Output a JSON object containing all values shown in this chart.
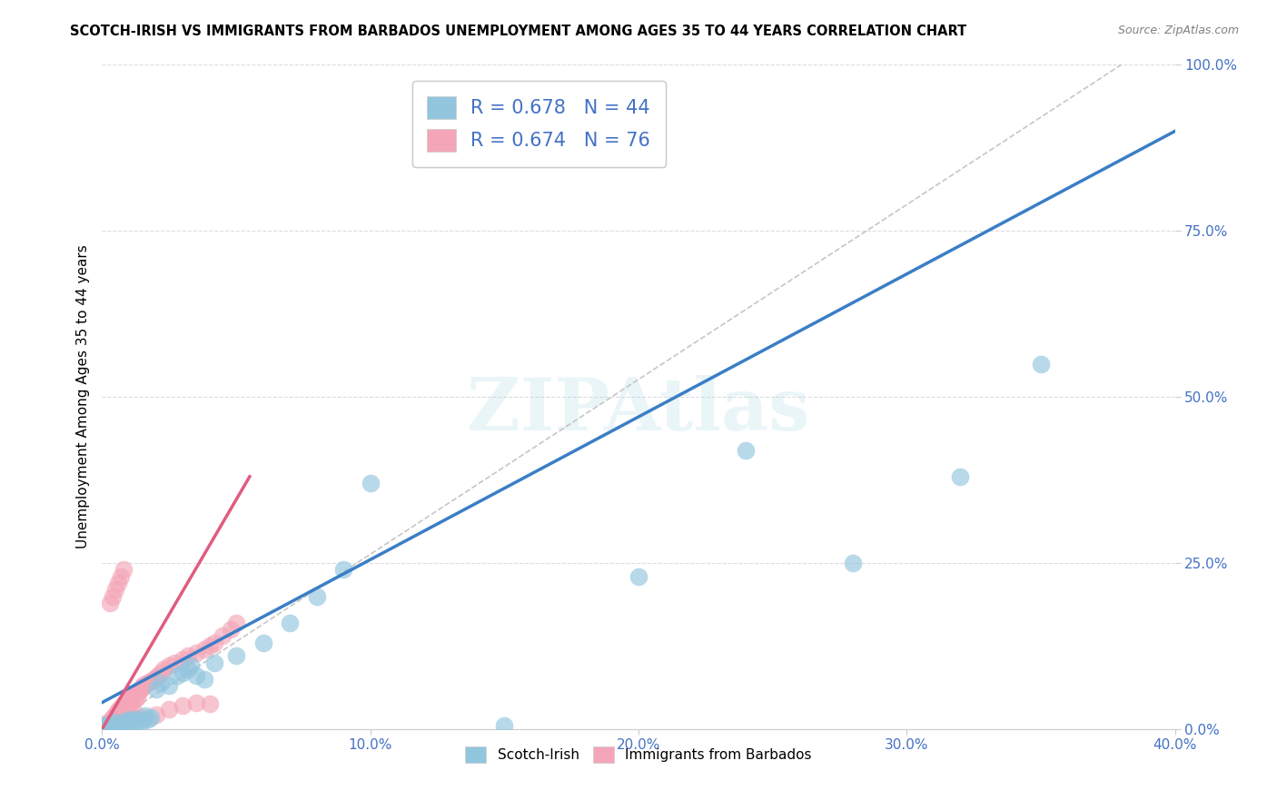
{
  "title": "SCOTCH-IRISH VS IMMIGRANTS FROM BARBADOS UNEMPLOYMENT AMONG AGES 35 TO 44 YEARS CORRELATION CHART",
  "source": "Source: ZipAtlas.com",
  "ylabel": "Unemployment Among Ages 35 to 44 years",
  "xlim": [
    0,
    0.4
  ],
  "ylim": [
    0,
    1.0
  ],
  "xticks": [
    0.0,
    0.1,
    0.2,
    0.3,
    0.4
  ],
  "xtick_labels": [
    "0.0%",
    "10.0%",
    "20.0%",
    "30.0%",
    "40.0%"
  ],
  "yticks": [
    0.0,
    0.25,
    0.5,
    0.75,
    1.0
  ],
  "ytick_labels": [
    "0.0%",
    "25.0%",
    "50.0%",
    "75.0%",
    "100.0%"
  ],
  "legend_scotch_irish": "Scotch-Irish",
  "legend_barbados": "Immigrants from Barbados",
  "R_scotch": 0.678,
  "N_scotch": 44,
  "R_barbados": 0.674,
  "N_barbados": 76,
  "scotch_irish_color": "#92C5DE",
  "barbados_color": "#F4A6B8",
  "scotch_irish_line_color": "#3A7EC6",
  "barbados_line_color": "#E05C80",
  "watermark": "ZIPAtlas",
  "blue_line_x0": 0.0,
  "blue_line_y0": 0.04,
  "blue_line_x1": 0.4,
  "blue_line_y1": 0.9,
  "pink_line_x0": 0.0,
  "pink_line_y0": 0.0,
  "pink_line_x1": 0.055,
  "pink_line_y1": 0.38,
  "dash_line_x0": 0.0,
  "dash_line_y0": 0.0,
  "dash_line_x1": 0.38,
  "dash_line_y1": 1.0,
  "scotch_x": [
    0.001,
    0.002,
    0.002,
    0.003,
    0.003,
    0.004,
    0.005,
    0.005,
    0.006,
    0.007,
    0.008,
    0.009,
    0.01,
    0.01,
    0.011,
    0.012,
    0.013,
    0.014,
    0.015,
    0.016,
    0.017,
    0.018,
    0.02,
    0.022,
    0.025,
    0.028,
    0.03,
    0.032,
    0.033,
    0.035,
    0.038,
    0.042,
    0.05,
    0.06,
    0.07,
    0.08,
    0.09,
    0.1,
    0.15,
    0.2,
    0.24,
    0.28,
    0.32,
    0.35
  ],
  "scotch_y": [
    0.005,
    0.003,
    0.006,
    0.004,
    0.008,
    0.007,
    0.005,
    0.01,
    0.008,
    0.006,
    0.009,
    0.012,
    0.008,
    0.015,
    0.01,
    0.013,
    0.015,
    0.012,
    0.01,
    0.02,
    0.015,
    0.018,
    0.06,
    0.07,
    0.065,
    0.08,
    0.085,
    0.09,
    0.095,
    0.08,
    0.075,
    0.1,
    0.11,
    0.13,
    0.16,
    0.2,
    0.24,
    0.37,
    0.005,
    0.23,
    0.42,
    0.25,
    0.38,
    0.55
  ],
  "barbados_x": [
    0.001,
    0.001,
    0.001,
    0.002,
    0.002,
    0.002,
    0.003,
    0.003,
    0.003,
    0.003,
    0.004,
    0.004,
    0.004,
    0.004,
    0.005,
    0.005,
    0.005,
    0.005,
    0.006,
    0.006,
    0.006,
    0.007,
    0.007,
    0.007,
    0.008,
    0.008,
    0.008,
    0.009,
    0.009,
    0.01,
    0.01,
    0.011,
    0.011,
    0.012,
    0.012,
    0.013,
    0.013,
    0.014,
    0.014,
    0.015,
    0.015,
    0.016,
    0.017,
    0.018,
    0.019,
    0.02,
    0.021,
    0.022,
    0.023,
    0.025,
    0.027,
    0.03,
    0.032,
    0.035,
    0.038,
    0.04,
    0.042,
    0.045,
    0.048,
    0.05,
    0.003,
    0.004,
    0.005,
    0.006,
    0.007,
    0.008,
    0.009,
    0.01,
    0.011,
    0.012,
    0.015,
    0.02,
    0.025,
    0.03,
    0.035,
    0.04
  ],
  "barbados_y": [
    0.005,
    0.003,
    0.008,
    0.006,
    0.004,
    0.007,
    0.01,
    0.008,
    0.012,
    0.009,
    0.015,
    0.012,
    0.018,
    0.014,
    0.016,
    0.02,
    0.022,
    0.018,
    0.024,
    0.026,
    0.028,
    0.03,
    0.025,
    0.032,
    0.035,
    0.03,
    0.038,
    0.04,
    0.042,
    0.036,
    0.045,
    0.048,
    0.05,
    0.044,
    0.052,
    0.055,
    0.048,
    0.058,
    0.06,
    0.062,
    0.065,
    0.068,
    0.07,
    0.072,
    0.075,
    0.078,
    0.08,
    0.085,
    0.09,
    0.095,
    0.1,
    0.105,
    0.11,
    0.115,
    0.12,
    0.125,
    0.13,
    0.14,
    0.15,
    0.16,
    0.19,
    0.2,
    0.21,
    0.22,
    0.23,
    0.24,
    0.01,
    0.015,
    0.02,
    0.025,
    0.018,
    0.022,
    0.03,
    0.035,
    0.04,
    0.038
  ]
}
